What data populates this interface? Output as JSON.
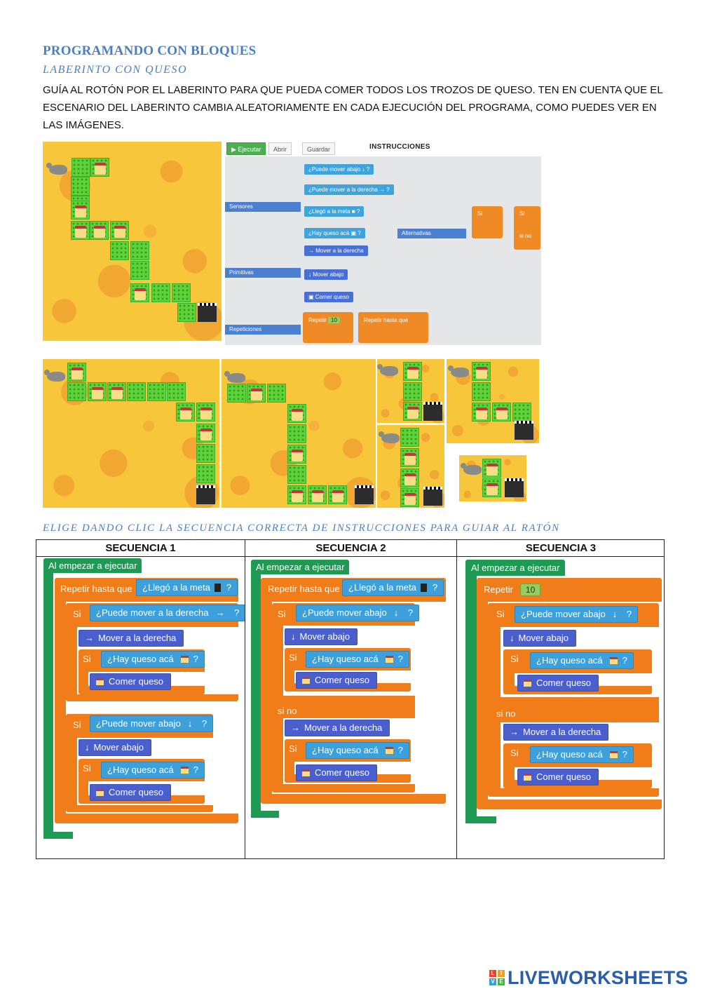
{
  "header": {
    "title": "PROGRAMANDO CON BLOQUES",
    "subtitle": "LABERINTO CON QUESO",
    "intro": "GUÍA AL ROTÓN POR EL LABERINTO PARA QUE PUEDA COMER TODOS LOS TROZOS DE QUESO. TEN EN CUENTA QUE EL ESCENARIO DEL LABERINTO CAMBIA ALEATORIAMENTE EN CADA EJECUCIÓN DEL PROGRAMA, COMO PUEDES VER EN LAS IMÁGENES."
  },
  "editor": {
    "buttons": {
      "run": "▶ Ejecutar",
      "open": "Abrir",
      "save": "Guardar"
    },
    "panel_title": "INSTRUCCIONES",
    "categories": {
      "sensors": "Sensores",
      "primitives": "Primitivas",
      "repetitions": "Repeticiones",
      "alternatives": "Alternativas"
    },
    "blocks": {
      "can_down": "¿Puede mover abajo",
      "can_right": "¿Puede mover a la derecha",
      "reached_goal": "¿Llegó a la meta",
      "has_cheese": "¿Hay queso acá",
      "move_right": "Mover a la derecha",
      "move_down": "Mover abajo",
      "eat_cheese": "Comer queso",
      "repeat": "Repetir",
      "repeat_count": "10",
      "repeat_until": "Repetir hasta que",
      "if": "Si",
      "else": "si no",
      "q": "?"
    }
  },
  "instruction": "ELIGE DANDO CLIC LA SECUENCIA CORRECTA DE INSTRUCCIONES PARA GUIAR AL RATÓN",
  "sequences": {
    "s1": {
      "header": "SECUENCIA 1",
      "start": "Al empezar a ejecutar",
      "repeat_until": "Repetir hasta que",
      "reached_goal": "¿Llegó a la meta",
      "if": "Si",
      "can_right": "¿Puede mover a la derecha",
      "move_right": "Mover a la derecha",
      "has_cheese": "¿Hay queso acá",
      "eat_cheese": "Comer queso",
      "can_down": "¿Puede mover abajo",
      "move_down": "Mover abajo",
      "q": "?"
    },
    "s2": {
      "header": "SECUENCIA 2",
      "start": "Al empezar a ejecutar",
      "repeat_until": "Repetir hasta que",
      "reached_goal": "¿Llegó a la meta",
      "if": "Si",
      "can_down": "¿Puede mover abajo",
      "move_down": "Mover abajo",
      "has_cheese": "¿Hay queso acá",
      "eat_cheese": "Comer queso",
      "else": "si no",
      "move_right": "Mover a la derecha",
      "q": "?"
    },
    "s3": {
      "header": "SECUENCIA 3",
      "start": "Al empezar a ejecutar",
      "repeat": "Repetir",
      "count": "10",
      "if": "Si",
      "can_down": "¿Puede mover abajo",
      "move_down": "Mover abajo",
      "has_cheese": "¿Hay queso acá",
      "eat_cheese": "Comer queso",
      "else": "si no",
      "move_right": "Mover a la derecha",
      "q": "?"
    }
  },
  "footer": {
    "logo": "LIVEWORKSHEETS",
    "logo_letters": [
      "L",
      "I",
      "V",
      "E"
    ]
  },
  "colors": {
    "heading": "#4a7fc0",
    "hat": "#1f9a55",
    "control": "#f07d19",
    "sensor": "#3ea0da",
    "primitive": "#4a5fcc",
    "cheese": "#f8c63a",
    "grass": "#5fd13a"
  }
}
